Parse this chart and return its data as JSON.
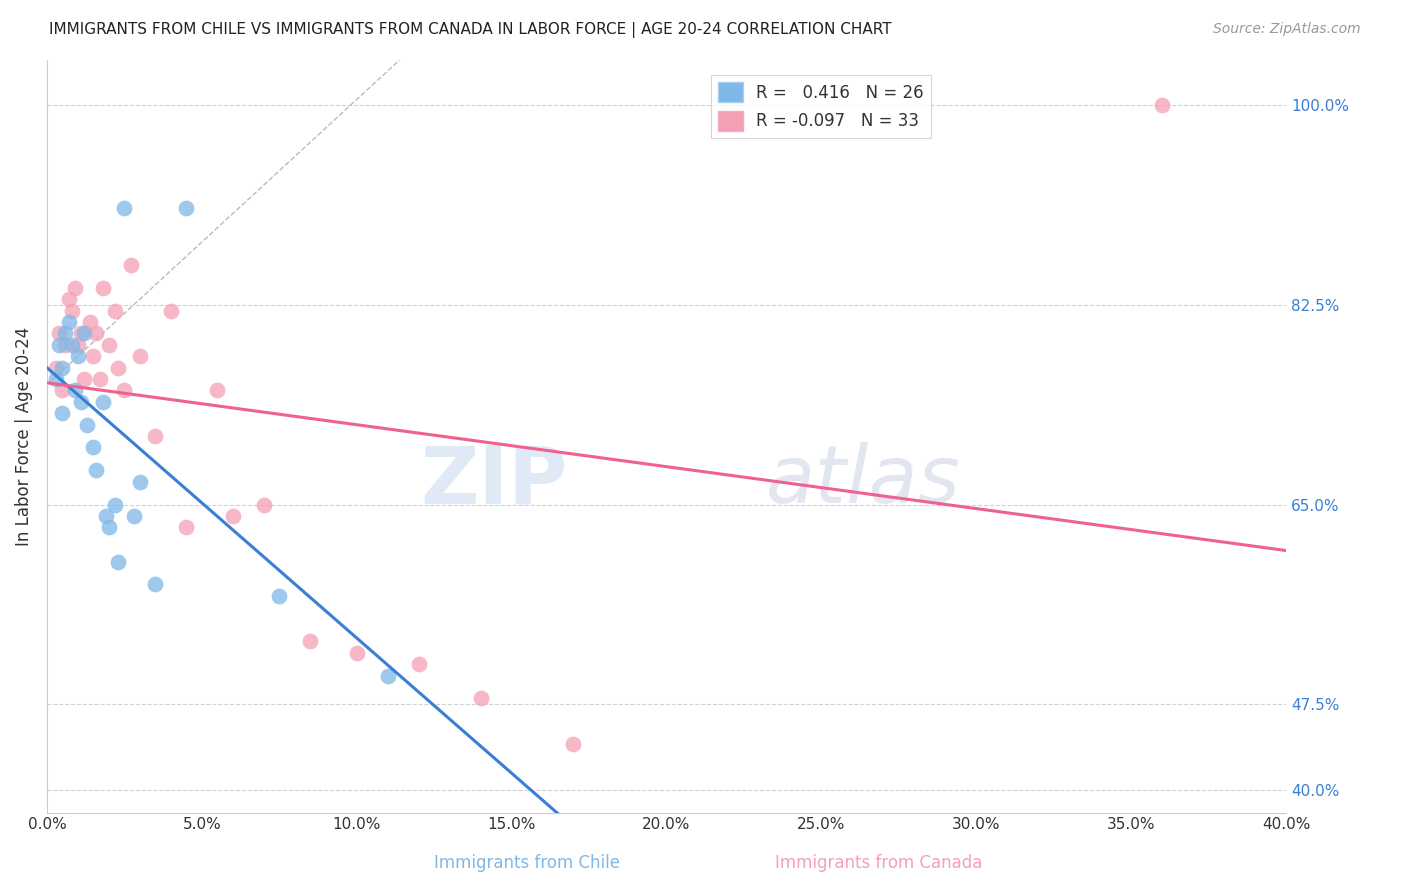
{
  "title": "IMMIGRANTS FROM CHILE VS IMMIGRANTS FROM CANADA IN LABOR FORCE | AGE 20-24 CORRELATION CHART",
  "source": "Source: ZipAtlas.com",
  "ylabel": "In Labor Force | Age 20-24",
  "xlabel_label_chile": "Immigrants from Chile",
  "xlabel_label_canada": "Immigrants from Canada",
  "x_tick_labels": [
    "0.0%",
    "5.0%",
    "10.0%",
    "15.0%",
    "20.0%",
    "25.0%",
    "30.0%",
    "35.0%",
    "40.0%"
  ],
  "x_tick_values": [
    0.0,
    5.0,
    10.0,
    15.0,
    20.0,
    25.0,
    30.0,
    35.0,
    40.0
  ],
  "y_tick_labels_right": [
    "100.0%",
    "82.5%",
    "65.0%",
    "47.5%"
  ],
  "y_tick_values_right": [
    100.0,
    82.5,
    65.0,
    47.5
  ],
  "y_tick_labels_right_extra": "40.0%",
  "xlim": [
    0.0,
    40.0
  ],
  "ylim": [
    38.0,
    104.0
  ],
  "chile_r": 0.416,
  "chile_n": 26,
  "canada_r": -0.097,
  "canada_n": 33,
  "chile_color": "#7eb8e8",
  "canada_color": "#f4a0b5",
  "chile_line_color": "#3a7fd5",
  "canada_line_color": "#f06090",
  "grid_color": "#d0d0d8",
  "background_color": "#ffffff",
  "watermark_zip": "ZIP",
  "watermark_atlas": "atlas",
  "chile_x": [
    0.3,
    0.4,
    0.5,
    0.5,
    0.6,
    0.7,
    0.8,
    0.9,
    1.0,
    1.1,
    1.2,
    1.3,
    1.5,
    1.6,
    1.8,
    1.9,
    2.0,
    2.2,
    2.3,
    2.5,
    2.8,
    3.0,
    3.5,
    4.5,
    7.5,
    11.0
  ],
  "chile_y": [
    76.0,
    79.0,
    77.0,
    73.0,
    80.0,
    81.0,
    79.0,
    75.0,
    78.0,
    74.0,
    80.0,
    72.0,
    70.0,
    68.0,
    74.0,
    64.0,
    63.0,
    65.0,
    60.0,
    91.0,
    64.0,
    67.0,
    58.0,
    91.0,
    57.0,
    50.0
  ],
  "canada_x": [
    0.3,
    0.4,
    0.5,
    0.6,
    0.7,
    0.8,
    0.9,
    1.0,
    1.1,
    1.2,
    1.4,
    1.5,
    1.6,
    1.7,
    1.8,
    2.0,
    2.2,
    2.3,
    2.5,
    2.7,
    3.0,
    3.5,
    4.0,
    4.5,
    5.5,
    6.0,
    7.0,
    8.5,
    10.0,
    12.0,
    14.0,
    17.0,
    36.0
  ],
  "canada_y": [
    77.0,
    80.0,
    75.0,
    79.0,
    83.0,
    82.0,
    84.0,
    79.0,
    80.0,
    76.0,
    81.0,
    78.0,
    80.0,
    76.0,
    84.0,
    79.0,
    82.0,
    77.0,
    75.0,
    86.0,
    78.0,
    71.0,
    82.0,
    63.0,
    75.0,
    64.0,
    65.0,
    53.0,
    52.0,
    51.0,
    48.0,
    44.0,
    100.0
  ]
}
